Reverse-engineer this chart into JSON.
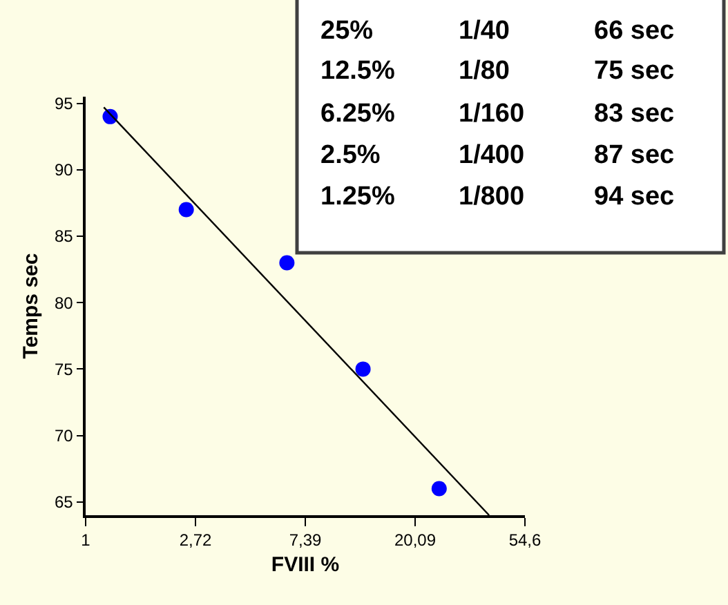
{
  "chart_data": {
    "type": "scatter",
    "xlabel": "FVIII %",
    "ylabel": "Temps sec",
    "log": "x",
    "x": [
      1.25,
      2.5,
      6.25,
      12.5,
      25
    ],
    "series": [
      {
        "color": "#0000ff",
        "values": [
          94,
          87,
          83,
          75,
          66
        ],
        "marker": "circle"
      },
      {
        "type": "line",
        "color": "#000000",
        "x": [
          1.18,
          39.4
        ],
        "values": [
          94.7,
          64
        ],
        "marker": "none"
      }
    ],
    "xlim": [
      1,
      54.6
    ],
    "xticks": [
      1,
      {
        "value": 2.72,
        "label": "2,72"
      },
      {
        "value": 7.39,
        "label": "7,39"
      },
      {
        "value": 20.09,
        "label": "20,09"
      },
      {
        "value": 54.6,
        "label": "54,6"
      }
    ],
    "ylim": [
      64,
      95.5
    ],
    "yticks": [
      65,
      70,
      75,
      80,
      85,
      90,
      95
    ],
    "grid": false,
    "annotations": [
      "25%",
      "1/40",
      "66 sec",
      "12.5%",
      "1/80",
      "75 sec",
      "6.25%",
      "1/160",
      "83 sec",
      "2.5%",
      "1/400",
      "87 sec",
      "1.25%",
      "1/800",
      "94 sec"
    ]
  }
}
